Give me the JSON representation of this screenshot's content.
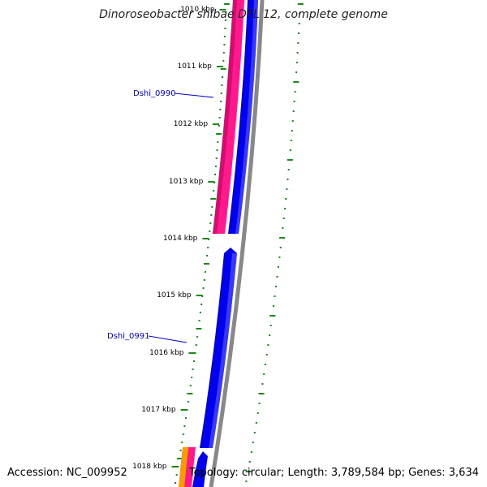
{
  "title": "Dinoroseobacter shibae DFL 12, complete genome",
  "footer": {
    "accession": "Accession: NC_009952",
    "summary": "Topology: circular; Length: 3,789,584 bp; Genes: 3,634"
  },
  "tick_labels": [
    "1010 kbp",
    "1011 kbp",
    "1012 kbp",
    "1013 kbp",
    "1014 kbp",
    "1015 kbp",
    "1016 kbp",
    "1017 kbp",
    "1018 kbp"
  ],
  "gene_labels": [
    "Dshi_0990",
    "Dshi_0991"
  ],
  "colors": {
    "forward_gene": "#ff1a8c",
    "reverse_gene": "#0000ee",
    "backbone": "#888888",
    "gc_ticks": "#1a8a1a",
    "orange_gene": "#ff9900",
    "label_link": "#0000cc"
  }
}
